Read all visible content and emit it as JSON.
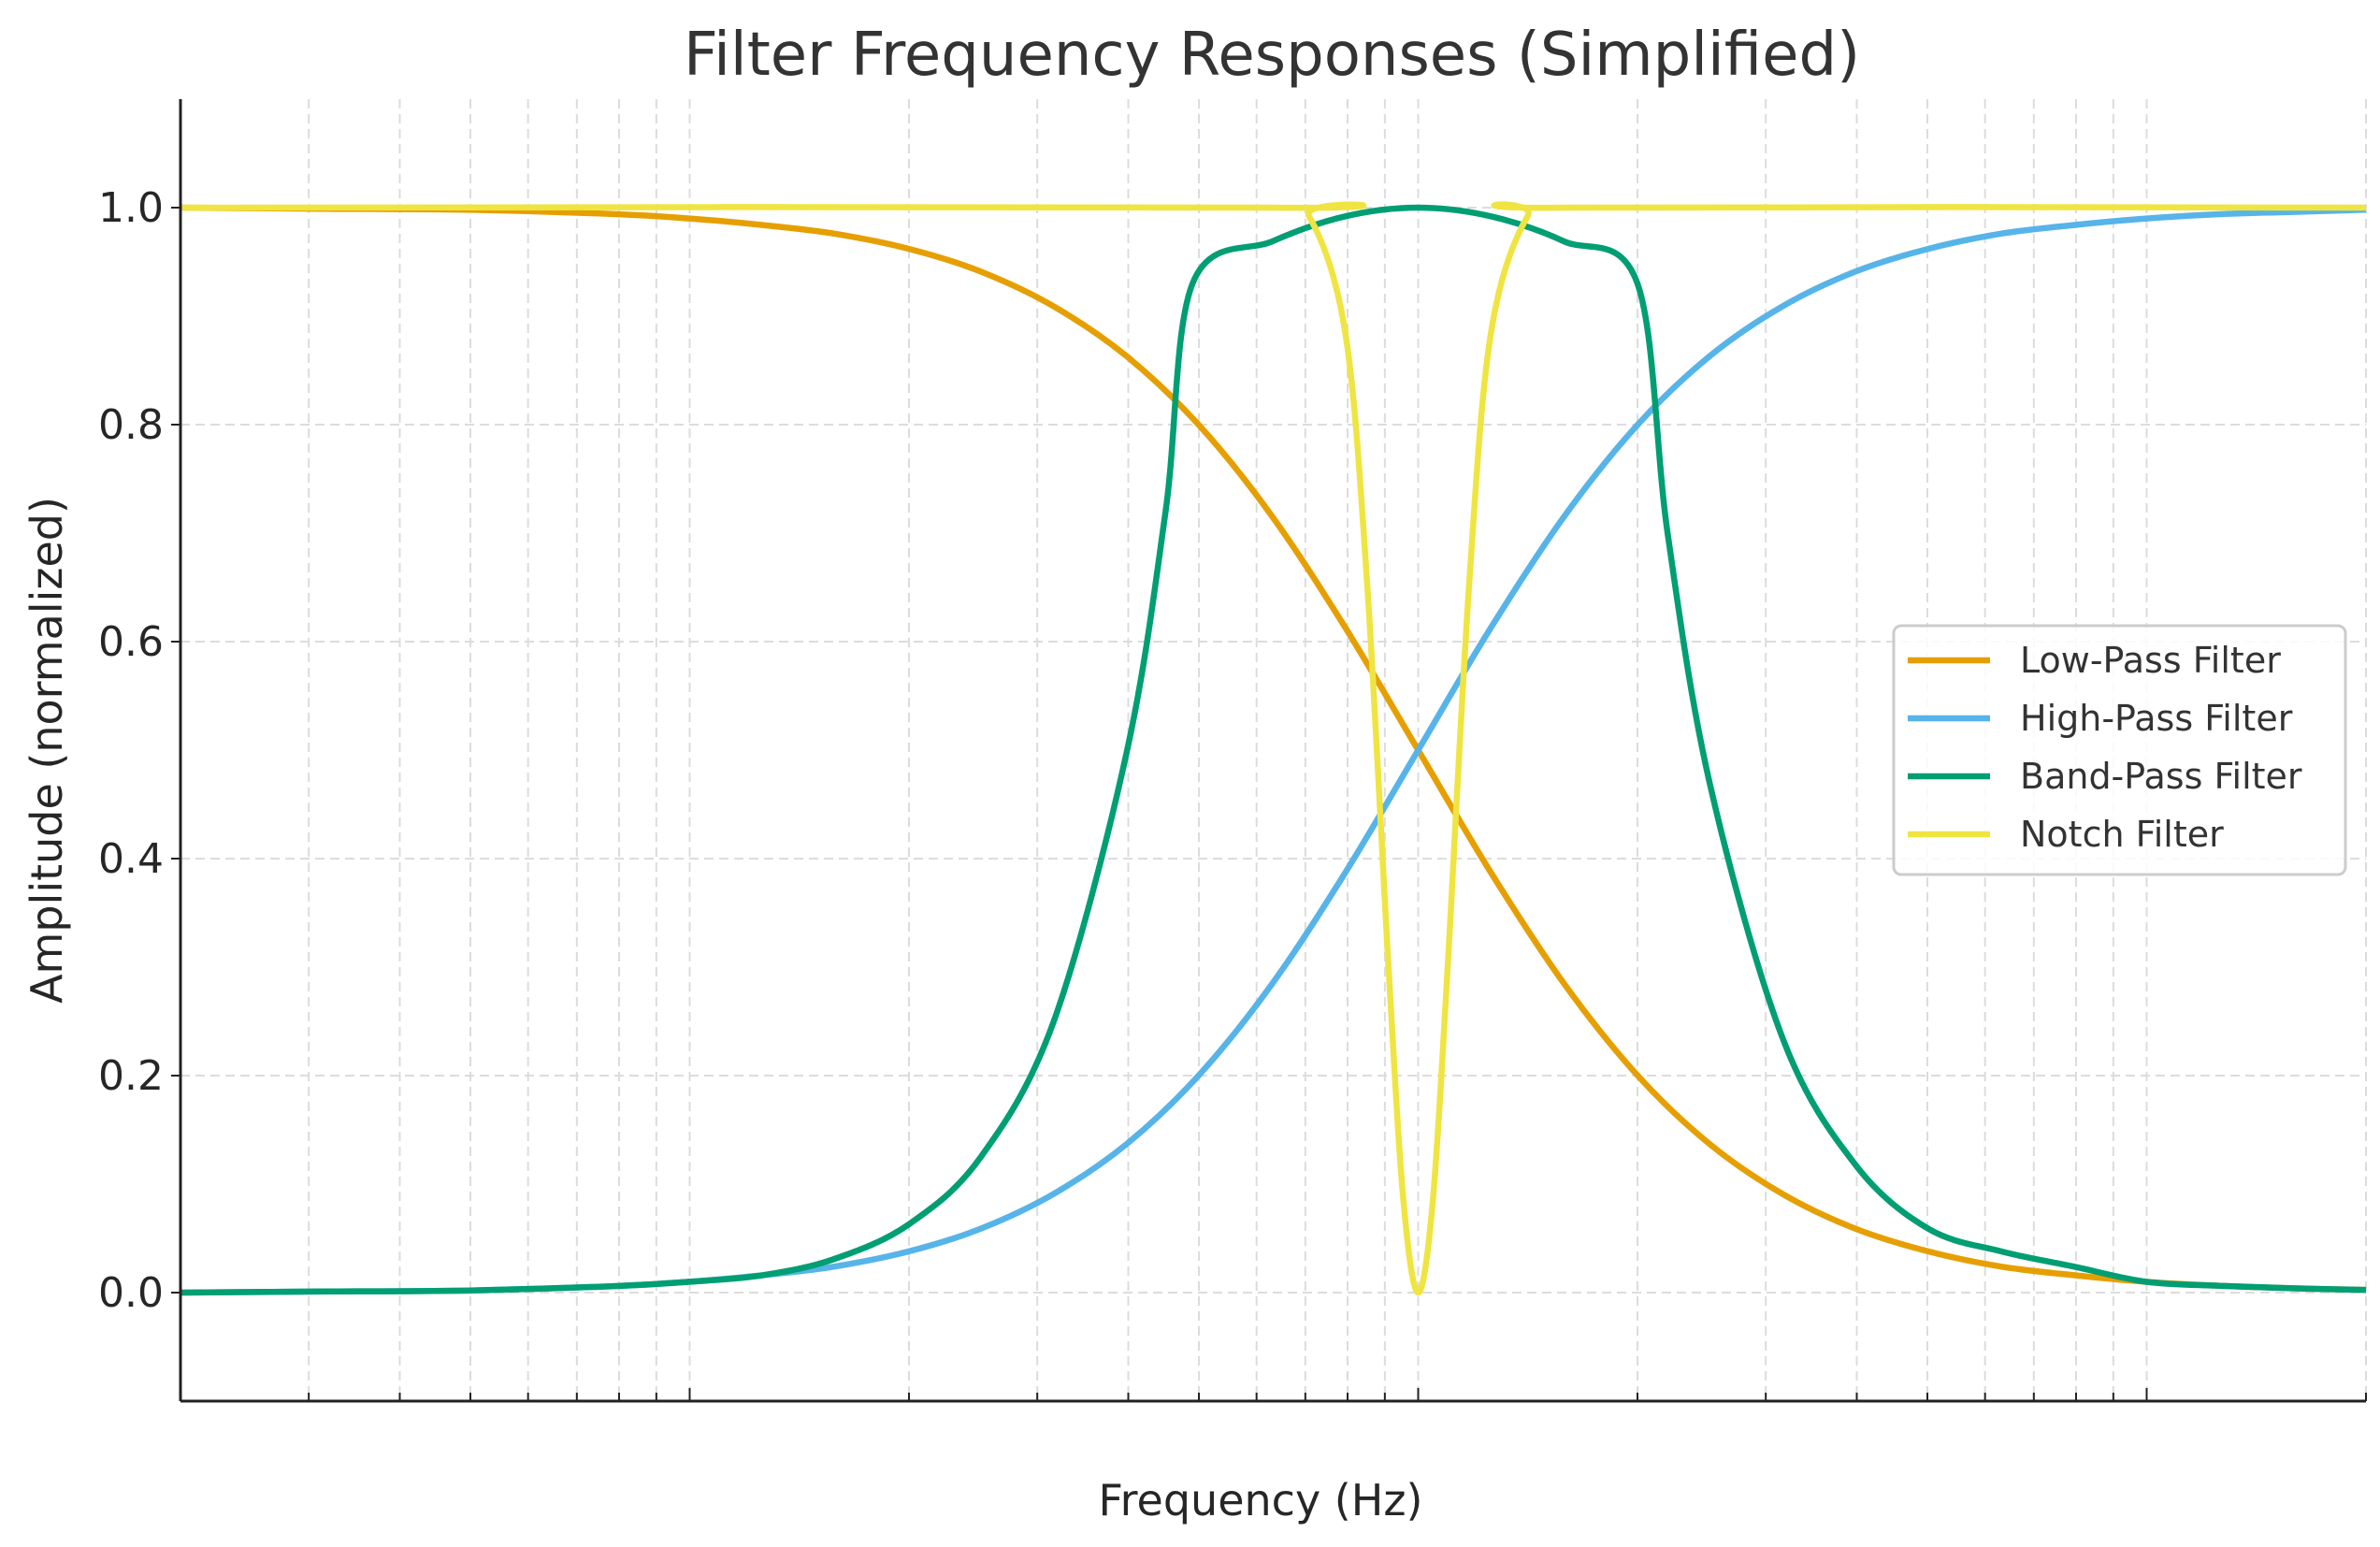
{
  "chart_data": {
    "type": "line",
    "title": "Filter Frequency Responses (Simplified)",
    "xlabel": "Frequency (Hz)",
    "ylabel": "Amplitude (normalized)",
    "xscale": "log",
    "xlim": [
      2,
      2000
    ],
    "ylim": [
      -0.1,
      1.1
    ],
    "x_major_ticks": [
      10,
      100,
      1000
    ],
    "x_minor_ticks": [
      3,
      4,
      5,
      6,
      7,
      8,
      9,
      20,
      30,
      40,
      50,
      60,
      70,
      80,
      90,
      200,
      300,
      400,
      500,
      600,
      700,
      800,
      900,
      2000
    ],
    "y_ticks": [
      0.0,
      0.2,
      0.4,
      0.6,
      0.8,
      1.0
    ],
    "y_tick_labels": [
      "0.0",
      "0.2",
      "0.4",
      "0.6",
      "0.8",
      "1.0"
    ],
    "grid": true,
    "legend_position": "center-right",
    "series": [
      {
        "name": "Low-Pass Filter",
        "color": "#E69F00",
        "x": [
          2,
          3.16,
          5,
          7.94,
          10,
          12.6,
          15.8,
          20,
          25.1,
          31.6,
          39.8,
          50.1,
          63.1,
          79.4,
          100,
          125.9,
          158.5,
          199.5,
          251.2,
          316.2,
          398.1,
          501.2,
          631,
          794.3,
          1000,
          1258.9,
          1584.9,
          2000
        ],
        "y": [
          1.0,
          0.999,
          0.998,
          0.994,
          0.99,
          0.984,
          0.976,
          0.962,
          0.941,
          0.909,
          0.863,
          0.799,
          0.715,
          0.613,
          0.5,
          0.387,
          0.285,
          0.201,
          0.137,
          0.091,
          0.059,
          0.038,
          0.024,
          0.016,
          0.0099,
          0.0063,
          0.004,
          0.0025
        ]
      },
      {
        "name": "High-Pass Filter",
        "color": "#56B4E9",
        "x": [
          2,
          3.16,
          5,
          7.94,
          10,
          12.6,
          15.8,
          20,
          25.1,
          31.6,
          39.8,
          50.1,
          63.1,
          79.4,
          100,
          125.9,
          158.5,
          199.5,
          251.2,
          316.2,
          398.1,
          501.2,
          631,
          794.3,
          1000,
          1258.9,
          1584.9,
          2000
        ],
        "y": [
          0.0,
          0.001,
          0.002,
          0.006,
          0.01,
          0.016,
          0.024,
          0.038,
          0.059,
          0.091,
          0.137,
          0.201,
          0.285,
          0.387,
          0.5,
          0.613,
          0.715,
          0.799,
          0.863,
          0.909,
          0.941,
          0.962,
          0.976,
          0.984,
          0.99,
          0.994,
          0.996,
          0.998
        ]
      },
      {
        "name": "Band-Pass Filter",
        "color": "#009E73",
        "x": [
          2,
          3.16,
          5,
          7.94,
          10,
          12.6,
          15.8,
          20,
          25.1,
          31.6,
          39.8,
          45,
          49,
          63.1,
          79.4,
          100,
          125.9,
          158.5,
          200,
          220,
          251.2,
          316.2,
          398.1,
          501.2,
          631,
          794.3,
          1000,
          1258.9,
          1584.9,
          2000
        ],
        "y": [
          0.0,
          0.001,
          0.002,
          0.006,
          0.01,
          0.016,
          0.031,
          0.063,
          0.125,
          0.25,
          0.498,
          0.72,
          0.93,
          0.969,
          0.992,
          1.0,
          0.992,
          0.969,
          0.93,
          0.7,
          0.47,
          0.235,
          0.118,
          0.059,
          0.038,
          0.024,
          0.0099,
          0.0063,
          0.004,
          0.0025
        ]
      },
      {
        "name": "Notch Filter",
        "color": "#F0E442",
        "x": [
          2,
          63.1,
          70.8,
          79.4,
          85.1,
          91.2,
          95.5,
          100,
          104.7,
          109.6,
          117.5,
          125.9,
          141.3,
          158.5,
          2000
        ],
        "y": [
          1.0,
          1.0,
          0.992,
          0.885,
          0.654,
          0.292,
          0.083,
          0.0,
          0.083,
          0.292,
          0.654,
          0.885,
          0.992,
          1.0,
          1.0
        ]
      }
    ]
  }
}
